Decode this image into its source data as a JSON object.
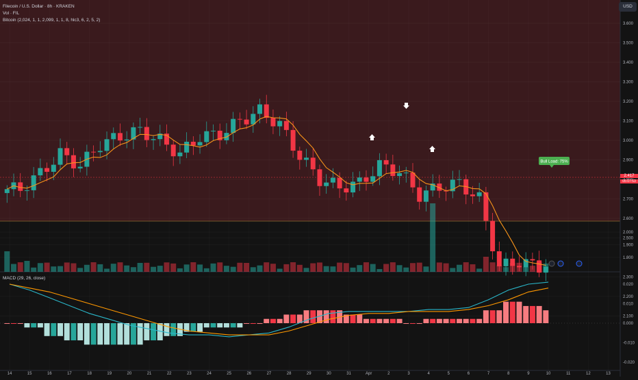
{
  "legend": {
    "symbol": "Filecoin / U.S. Dollar · 8h · KRAKEN",
    "volume": "Vol · FIL",
    "indicator": "Bitcoin (2,024, 1, 1, 2,099, 1, 1, 8, hlc3, 6, 2, 5, 2)",
    "macd": "MACD (29, 26, close)"
  },
  "currency": "USD",
  "price_axis": [
    "3.600",
    "3.500",
    "3.400",
    "3.300",
    "3.200",
    "3.100",
    "3.000",
    "2.900",
    "2.800",
    "2.700",
    "2.600",
    "2.500",
    "2.300",
    "2.200",
    "2.100",
    "2.000",
    "1.900",
    "1.800"
  ],
  "current_price": {
    "value": "2.417",
    "countdown": "05:07:53"
  },
  "macd_axis": [
    "0.020",
    "0.010",
    "0.000",
    "-0.010",
    "-0.020"
  ],
  "time_axis": [
    "14",
    "15",
    "16",
    "17",
    "18",
    "19",
    "20",
    "21",
    "22",
    "23",
    "24",
    "25",
    "26",
    "27",
    "28",
    "29",
    "30",
    "31",
    "Apr",
    "2",
    "3",
    "4",
    "5",
    "6",
    "7",
    "8",
    "9",
    "10",
    "11",
    "12",
    "13"
  ],
  "badge": "Bull Load: 75%",
  "colors": {
    "up": "#26a69a",
    "down": "#f23645",
    "ma": "#f7931a",
    "macd": "#2ab7ca",
    "signal": "#ff9800",
    "bg_band": "#3a1a1d"
  },
  "chart_data": [
    {
      "type": "line",
      "title": "Filecoin / U.S. Dollar · 8h · KRAKEN",
      "ylim": [
        2.1,
        3.65
      ],
      "x": [
        "14",
        "15",
        "16",
        "17",
        "18",
        "19",
        "20",
        "21",
        "22",
        "23",
        "24",
        "25",
        "26",
        "27",
        "28",
        "29",
        "30",
        "31",
        "Apr",
        "2",
        "3",
        "4",
        "5",
        "6",
        "7",
        "8",
        "9",
        "10"
      ],
      "series": [
        {
          "name": "close",
          "values": [
            2.75,
            2.83,
            2.93,
            2.87,
            2.98,
            3.02,
            3.05,
            3.0,
            2.93,
            3.02,
            3.03,
            3.1,
            3.15,
            3.08,
            2.92,
            2.8,
            2.76,
            2.78,
            2.87,
            2.84,
            2.72,
            2.76,
            2.78,
            2.7,
            2.35,
            2.38,
            2.35,
            2.41
          ]
        }
      ]
    },
    {
      "type": "line",
      "title": "MACD (29, 26, close)",
      "ylim": [
        -0.02,
        0.025
      ],
      "x": [
        "14",
        "15",
        "16",
        "17",
        "18",
        "19",
        "20",
        "21",
        "22",
        "23",
        "24",
        "25",
        "26",
        "27",
        "28",
        "29",
        "30",
        "31",
        "Apr",
        "2",
        "3",
        "4",
        "5",
        "6",
        "7",
        "8",
        "9",
        "10"
      ],
      "series": [
        {
          "name": "MACD",
          "values": [
            0.02,
            0.017,
            0.013,
            0.009,
            0.005,
            0.002,
            -0.001,
            -0.003,
            -0.005,
            -0.006,
            -0.006,
            -0.007,
            -0.006,
            -0.005,
            -0.002,
            0.002,
            0.005,
            0.006,
            0.006,
            0.006,
            0.006,
            0.007,
            0.007,
            0.008,
            0.012,
            0.017,
            0.02,
            0.021
          ]
        },
        {
          "name": "Signal",
          "values": [
            0.02,
            0.018,
            0.016,
            0.013,
            0.01,
            0.007,
            0.004,
            0.001,
            -0.002,
            -0.004,
            -0.005,
            -0.006,
            -0.006,
            -0.006,
            -0.004,
            -0.001,
            0.002,
            0.004,
            0.005,
            0.005,
            0.006,
            0.006,
            0.006,
            0.007,
            0.009,
            0.012,
            0.016,
            0.018
          ]
        }
      ]
    }
  ]
}
